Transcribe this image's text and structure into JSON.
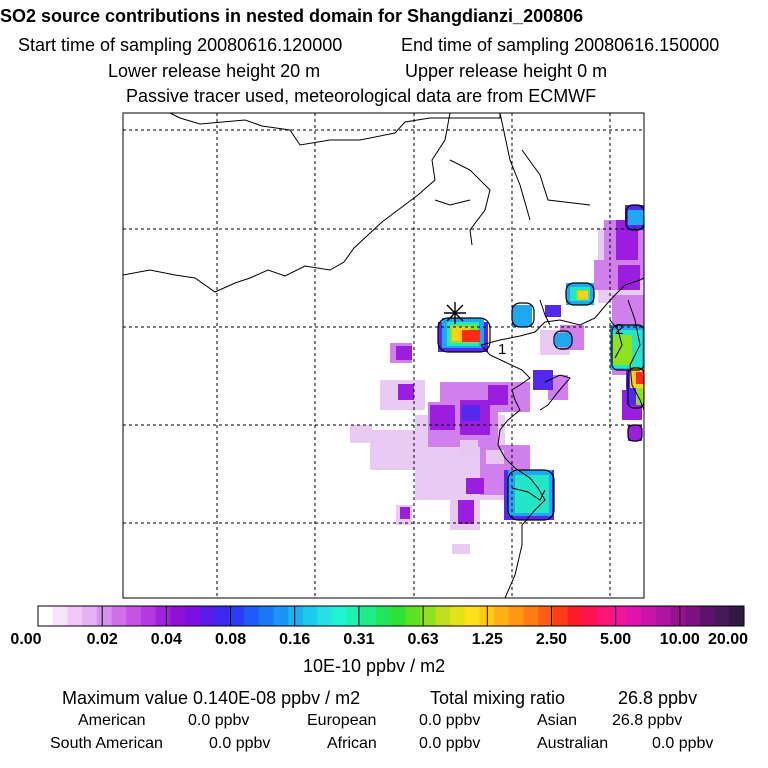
{
  "title": "SO2 source contributions in nested domain for Shangdianzi_200806",
  "header": {
    "start_label": "Start time of sampling 20080616.120000",
    "end_label": "End time of sampling 20080616.150000",
    "lower_label": "Lower release height   20 m",
    "upper_label": "Upper release height    0 m",
    "tracer_note": "Passive tracer used, meteorological data are from ECMWF"
  },
  "map": {
    "label_1": "1",
    "label_2": "2",
    "station_marker": "station-x-marker"
  },
  "colorbar": {
    "ticks": [
      "0.00",
      "0.02",
      "0.04",
      "0.08",
      "0.16",
      "0.31",
      "0.63",
      "1.25",
      "2.50",
      "5.00",
      "10.00",
      "20.00"
    ],
    "unit": "10E-10 ppbv / m2",
    "colors": [
      "#ffffff",
      "#f7e3fb",
      "#efcaf7",
      "#e5b2f3",
      "#d991ef",
      "#cf72ea",
      "#c553e6",
      "#b539e2",
      "#a321dc",
      "#8e12d6",
      "#7a0fe0",
      "#5b1aea",
      "#3d28f0",
      "#2a3cf5",
      "#1f5af7",
      "#1a78f7",
      "#1a94f5",
      "#1bb0f2",
      "#1fcaee",
      "#26e2e6",
      "#20f2d2",
      "#1df0b0",
      "#1eec86",
      "#20e65a",
      "#2ee234",
      "#5ee024",
      "#8ee020",
      "#bde01c",
      "#e6e01a",
      "#ffe01a",
      "#ffca16",
      "#ffb214",
      "#ff9812",
      "#ff7c12",
      "#ff5e14",
      "#ff3c18",
      "#ff1c2a",
      "#ff1450",
      "#ff1478",
      "#f2149a",
      "#e014aa",
      "#c814aa",
      "#b014a2",
      "#961492",
      "#7c1480",
      "#5e146c",
      "#461858",
      "#2e1a3c"
    ]
  },
  "stats": {
    "max_label": "Maximum value  0.140E-08 ppbv / m2",
    "total_label": "Total mixing ratio",
    "total_value": "26.8 ppbv",
    "regions": [
      {
        "name": "American",
        "value": "0.0 ppbv"
      },
      {
        "name": "European",
        "value": "0.0 ppbv"
      },
      {
        "name": "Asian",
        "value": "26.8 ppbv"
      },
      {
        "name": "South American",
        "value": "0.0 ppbv"
      },
      {
        "name": "African",
        "value": "0.0 ppbv"
      },
      {
        "name": "Australian",
        "value": "0.0 ppbv"
      }
    ]
  }
}
